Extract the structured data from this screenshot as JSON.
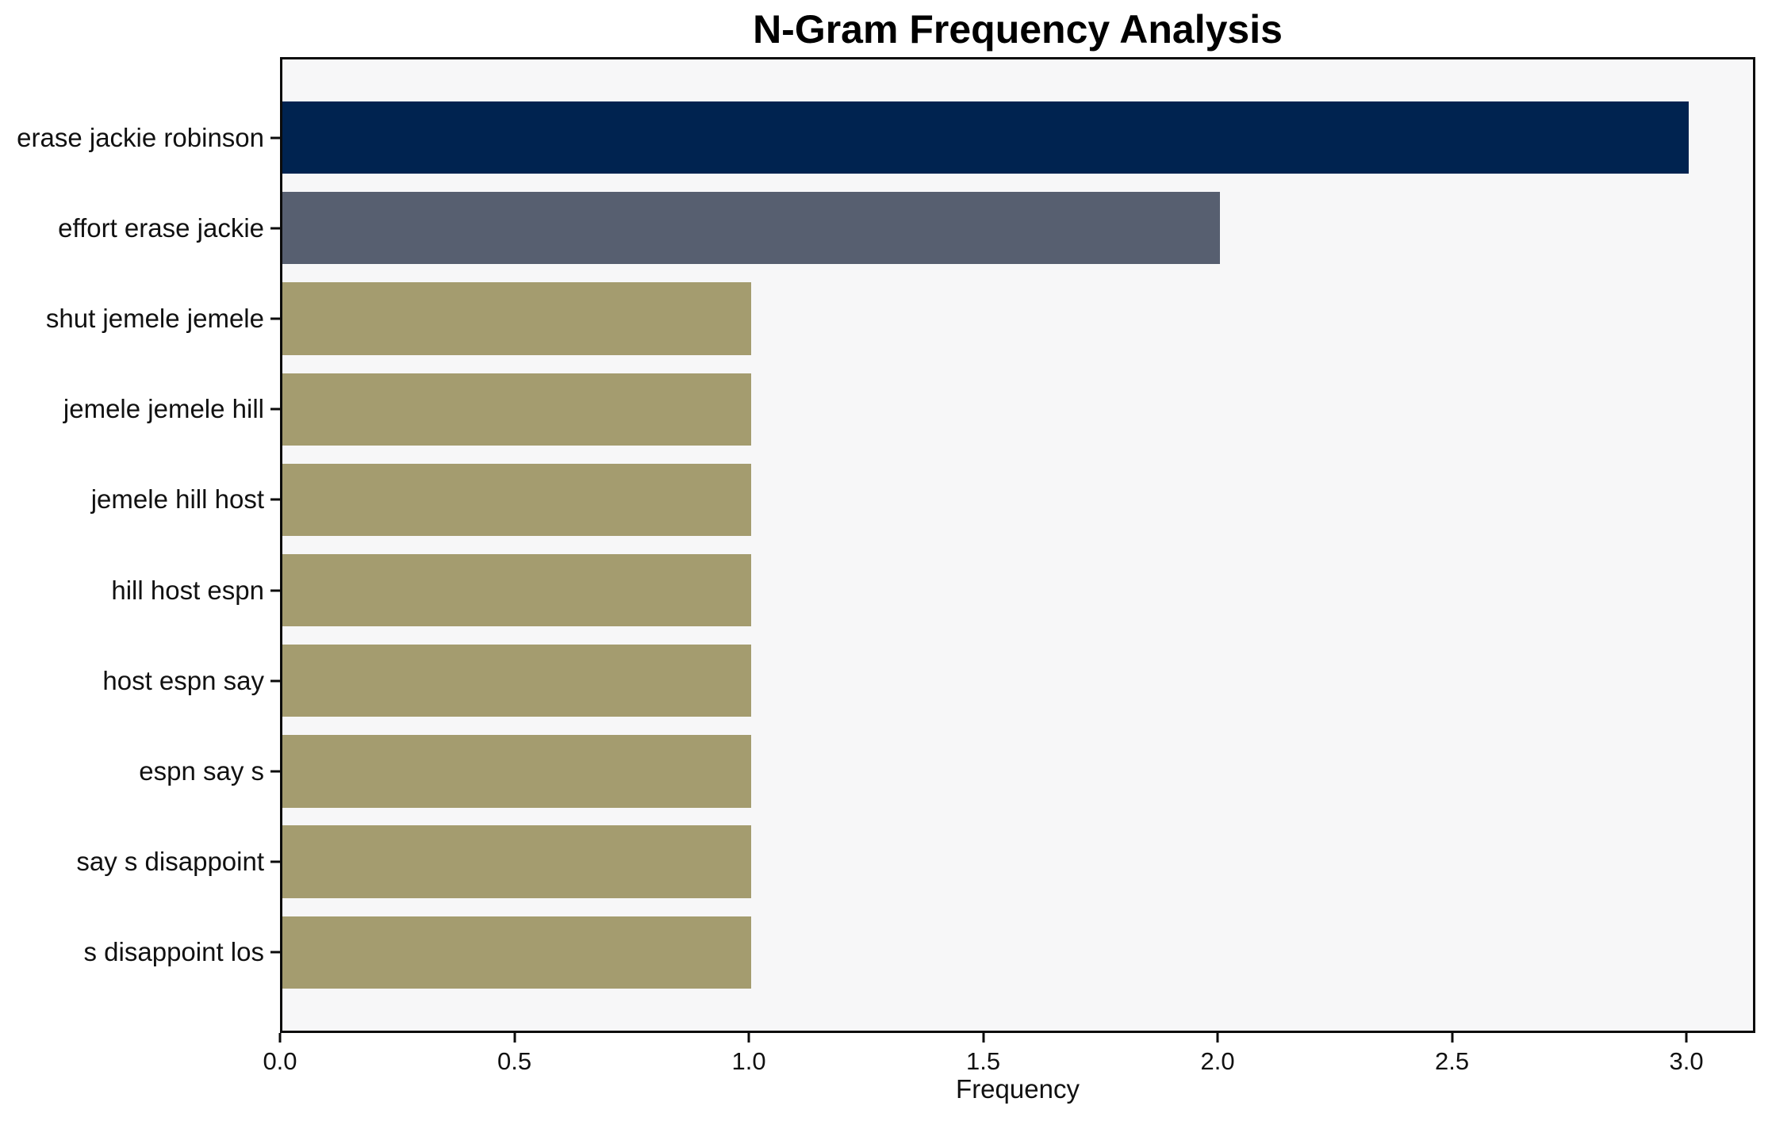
{
  "chart_data": {
    "type": "bar",
    "orientation": "horizontal",
    "title": "N-Gram Frequency Analysis",
    "xlabel": "Frequency",
    "ylabel": "",
    "categories": [
      "erase jackie robinson",
      "effort erase jackie",
      "shut jemele jemele",
      "jemele jemele hill",
      "jemele hill host",
      "hill host espn",
      "host espn say",
      "espn say s",
      "say s disappoint",
      "s disappoint los"
    ],
    "values": [
      3,
      2,
      1,
      1,
      1,
      1,
      1,
      1,
      1,
      1
    ],
    "bar_colors": [
      "#002350",
      "#575f70",
      "#a49c6f",
      "#a49c6f",
      "#a49c6f",
      "#a49c6f",
      "#a49c6f",
      "#a49c6f",
      "#a49c6f",
      "#a49c6f"
    ],
    "x_tick_values": [
      0,
      0.5,
      1,
      1.5,
      2,
      2.5,
      3
    ],
    "x_tick_labels": [
      "0.0",
      "0.5",
      "1.0",
      "1.5",
      "2.0",
      "2.5",
      "3.0"
    ],
    "xlim": [
      0,
      3.147
    ],
    "grid": false,
    "legend": "none",
    "plot_background": "#f7f7f8",
    "figure_background": "#ffffff",
    "axis_color": "#0b0b0b",
    "text_color": "#111111"
  }
}
